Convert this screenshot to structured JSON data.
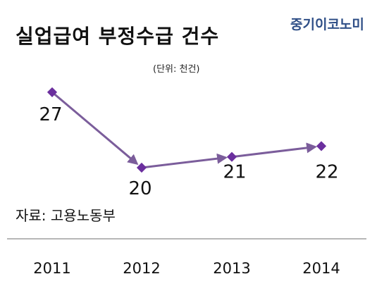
{
  "header": {
    "title": "실업급여 부정수급 건수",
    "brand": "중기이코노미",
    "unit_note": "(단위: 천건)"
  },
  "source_note": "자료: 고용노동부",
  "colors": {
    "line": "#7b5d9b",
    "marker": "#6b2f9e",
    "axis": "#8c8c8c",
    "brand": "#2f4f87"
  },
  "chart_data": {
    "type": "line",
    "categories": [
      "2011",
      "2012",
      "2013",
      "2014"
    ],
    "values": [
      27,
      20,
      21,
      22
    ],
    "data_labels": [
      "27",
      "20",
      "21",
      "22"
    ],
    "title": "실업급여 부정수급 건수",
    "unit": "(단위: 천건)",
    "grid": false,
    "legend": "none"
  }
}
